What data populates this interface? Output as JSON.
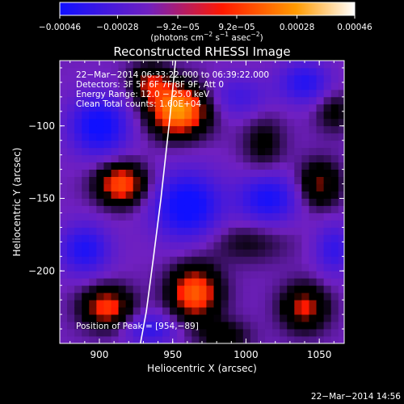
{
  "chart_data": {
    "type": "heatmap",
    "title": "Reconstructed RHESSI Image",
    "xlabel": "Heliocentric X (arcsec)",
    "ylabel": "Heliocentric Y (arcsec)",
    "xlim": [
      873,
      1067
    ],
    "ylim": [
      -250,
      -55
    ],
    "x_ticks": [
      900,
      950,
      1000,
      1050
    ],
    "y_ticks": [
      -100,
      -150,
      -200
    ],
    "x_tick_labels": [
      "900",
      "950",
      "1000",
      "1050"
    ],
    "y_tick_labels": [
      "−100",
      "−150",
      "−200"
    ],
    "colorbar": {
      "range": [
        -0.00046,
        0.00046
      ],
      "ticks": [
        -0.00046,
        -0.00028,
        -9.2e-05,
        9.2e-05,
        0.00028,
        0.00046
      ],
      "tick_labels": [
        "−0.00046",
        "−0.00028",
        "−9.2e−05",
        "9.2e−05",
        "0.00028",
        "0.00046"
      ],
      "unit_parts": [
        "(photons cm",
        "−2",
        " s",
        "−1",
        " asec",
        "−2",
        ")"
      ],
      "colors": [
        "#1010ff",
        "#7020c0",
        "#ff1800",
        "#ff9a00",
        "#ffffff"
      ]
    },
    "annotations": [
      "22−Mar−2014 06:33:22.000 to 06:39:22.000",
      "Detectors: 3F 5F 6F 7F 8F 9F, Att 0",
      "Energy Range: 12.0 − 25.0 keV",
      "Clean    Total counts: 1.60E+04"
    ],
    "peak_label": "Position of Peak = [954,−89]",
    "peak": [
      954,
      -89
    ],
    "limb_curve": {
      "x": [
        952,
        948,
        942,
        937,
        932,
        928
      ],
      "y": [
        -55,
        -95,
        -150,
        -190,
        -228,
        -250
      ]
    },
    "sources": [
      {
        "x": 954,
        "y": -89,
        "amp": 0.00046,
        "sx": 14,
        "sy": 12
      },
      {
        "x": 935,
        "y": -70,
        "amp": 0.00022,
        "sx": 10,
        "sy": 9
      },
      {
        "x": 915,
        "y": -140,
        "amp": 0.00034,
        "sx": 12,
        "sy": 10
      },
      {
        "x": 965,
        "y": -215,
        "amp": 0.00036,
        "sx": 12,
        "sy": 13
      },
      {
        "x": 905,
        "y": -225,
        "amp": 0.0003,
        "sx": 12,
        "sy": 10
      },
      {
        "x": 1040,
        "y": -225,
        "amp": 0.00026,
        "sx": 11,
        "sy": 11
      },
      {
        "x": 1050,
        "y": -140,
        "amp": 0.00022,
        "sx": 10,
        "sy": 11
      },
      {
        "x": 1012,
        "y": -112,
        "amp": 0.00012,
        "sx": 10,
        "sy": 14
      },
      {
        "x": 1000,
        "y": -180,
        "amp": 0.0001,
        "sx": 20,
        "sy": 10
      },
      {
        "x": 1060,
        "y": -90,
        "amp": 0.00012,
        "sx": 9,
        "sy": 10
      },
      {
        "x": 985,
        "y": -245,
        "amp": 0.00014,
        "sx": 12,
        "sy": 8
      },
      {
        "x": 900,
        "y": -100,
        "amp": -0.0003,
        "sx": 14,
        "sy": 14
      },
      {
        "x": 960,
        "y": -155,
        "amp": -0.00032,
        "sx": 16,
        "sy": 16
      },
      {
        "x": 1015,
        "y": -150,
        "amp": -0.00026,
        "sx": 14,
        "sy": 12
      },
      {
        "x": 890,
        "y": -185,
        "amp": -0.00024,
        "sx": 12,
        "sy": 12
      },
      {
        "x": 1040,
        "y": -70,
        "amp": -0.00022,
        "sx": 12,
        "sy": 10
      },
      {
        "x": 1060,
        "y": -185,
        "amp": -0.00018,
        "sx": 9,
        "sy": 12
      },
      {
        "x": 935,
        "y": -240,
        "amp": -0.00018,
        "sx": 12,
        "sy": 8
      },
      {
        "x": 995,
        "y": -80,
        "amp": -0.00014,
        "sx": 14,
        "sy": 10
      }
    ]
  },
  "footer_date": "22−Mar−2014 14:56"
}
